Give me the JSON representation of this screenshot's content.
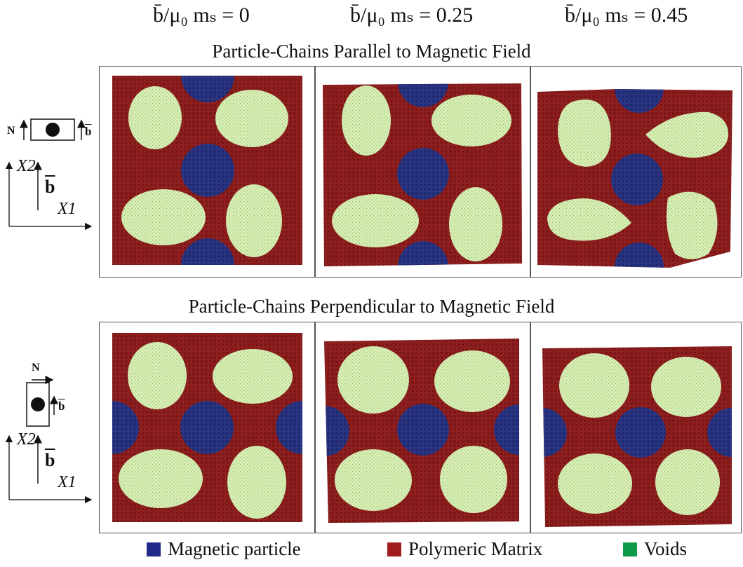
{
  "columns": [
    {
      "ratio": "b̄/μ₀ mₛ",
      "eq": "= 0"
    },
    {
      "ratio": "b̄/μ₀ mₛ",
      "eq": "= 0.25"
    },
    {
      "ratio": "b̄/μ₀ mₛ",
      "eq": "= 0.45"
    }
  ],
  "rows": [
    {
      "title": "Particle-Chains Parallel to Magnetic Field",
      "n_label": "N",
      "b_label": "b",
      "x1": "X1",
      "x2": "X2"
    },
    {
      "title": "Particle-Chains Perpendicular to Magnetic Field",
      "n_label": "N",
      "b_label": "b",
      "x1": "X1",
      "x2": "X2"
    }
  ],
  "legend": [
    {
      "label": "Magnetic particle",
      "color": "#1f2a8a"
    },
    {
      "label": "Polymeric Matrix",
      "color": "#a11d1d"
    },
    {
      "label": "Voids",
      "color": "#0c9a4a"
    }
  ],
  "colors": {
    "matrix": "#8e1b1b",
    "particle": "#243080",
    "void": "#d9eeb3"
  }
}
